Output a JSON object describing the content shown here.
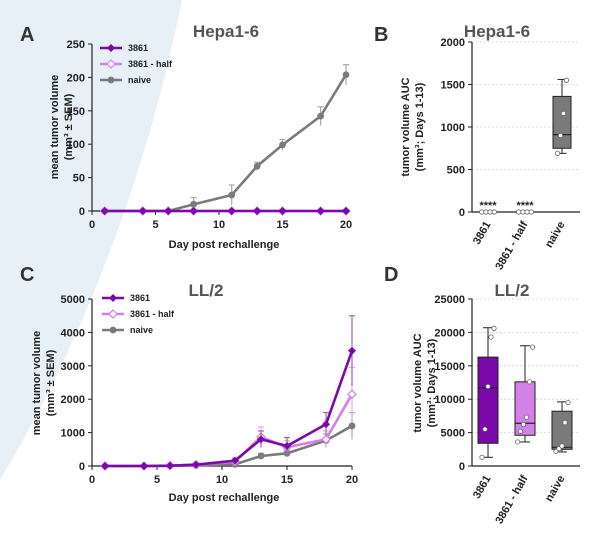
{
  "background": {
    "shape_color": "#e6f0f6"
  },
  "colors": {
    "3861": "#7b08a8",
    "3861 - half": "#d67fe8",
    "naive": "#7a7a7a"
  },
  "chart_data": [
    {
      "id": "A",
      "panel": "A",
      "type": "line",
      "title": "Hepa1-6",
      "xlabel": "Day post rechallenge",
      "ylabel_line1": "mean tumor volume",
      "ylabel_line2": "(mm³ ± SEM)",
      "xlim": [
        0,
        20
      ],
      "ylim": [
        0,
        250
      ],
      "xticks": [
        0,
        5,
        10,
        15,
        20
      ],
      "yticks": [
        0,
        50,
        100,
        150,
        200,
        250
      ],
      "x": [
        1,
        4,
        6,
        8,
        11,
        13,
        15,
        18,
        20
      ],
      "legend": [
        "3861",
        "3861 - half",
        "naive"
      ],
      "series": [
        {
          "name": "naive",
          "values": [
            0,
            0,
            0,
            10,
            24,
            67,
            99,
            142,
            204
          ],
          "errors": [
            0,
            0,
            0,
            10,
            15,
            6,
            8,
            14,
            15
          ]
        },
        {
          "name": "3861 - half",
          "values": [
            0,
            0,
            0,
            0,
            0,
            0,
            0,
            0,
            0
          ],
          "errors": [
            0,
            0,
            0,
            0,
            0,
            0,
            0,
            0,
            0
          ]
        },
        {
          "name": "3861",
          "values": [
            0,
            0,
            0,
            0,
            0,
            0,
            0,
            0,
            0
          ],
          "errors": [
            0,
            0,
            0,
            0,
            0,
            0,
            0,
            0,
            0
          ]
        }
      ]
    },
    {
      "id": "B",
      "panel": "B",
      "type": "box",
      "title": "Hepa1-6",
      "ylabel_line1": "tumor volume AUC",
      "ylabel_line2": "(mm³; Days 1-13)",
      "ylim": [
        0,
        2000
      ],
      "yticks": [
        0,
        500,
        1000,
        1500,
        2000
      ],
      "categories": [
        "3861",
        "3861 - half",
        "naive"
      ],
      "annotations": [
        "****",
        "****",
        ""
      ],
      "boxes": [
        {
          "name": "3861",
          "min": 0,
          "q1": 0,
          "median": 0,
          "q3": 0,
          "max": 0,
          "points": [
            0,
            0,
            0,
            0
          ]
        },
        {
          "name": "3861 - half",
          "min": 0,
          "q1": 0,
          "median": 0,
          "q3": 0,
          "max": 0,
          "points": [
            0,
            0,
            0,
            0
          ]
        },
        {
          "name": "naive",
          "min": 690,
          "q1": 750,
          "median": 910,
          "q3": 1360,
          "max": 1560,
          "points": [
            690,
            900,
            1160,
            1550
          ]
        }
      ]
    },
    {
      "id": "C",
      "panel": "C",
      "type": "line",
      "title": "LL/2",
      "xlabel": "Day post rechallenge",
      "ylabel_line1": "mean tumor volume",
      "ylabel_line2": "(mm³ ± SEM)",
      "xlim": [
        0,
        20
      ],
      "ylim": [
        0,
        5000
      ],
      "xticks": [
        0,
        5,
        10,
        15,
        20
      ],
      "yticks": [
        0,
        1000,
        2000,
        3000,
        4000,
        5000
      ],
      "x": [
        1,
        4,
        6,
        8,
        11,
        13,
        15,
        18,
        20
      ],
      "legend": [
        "3861",
        "3861 - half",
        "naive"
      ],
      "series": [
        {
          "name": "naive",
          "values": [
            0,
            0,
            5,
            20,
            50,
            300,
            380,
            760,
            1200
          ],
          "errors": [
            0,
            0,
            5,
            10,
            30,
            80,
            100,
            200,
            400
          ]
        },
        {
          "name": "3861 - half",
          "values": [
            0,
            0,
            10,
            40,
            130,
            870,
            560,
            800,
            2150
          ],
          "errors": [
            0,
            0,
            10,
            20,
            60,
            300,
            200,
            250,
            800
          ]
        },
        {
          "name": "3861",
          "values": [
            0,
            0,
            10,
            40,
            160,
            800,
            600,
            1250,
            3450
          ],
          "errors": [
            0,
            0,
            10,
            20,
            70,
            250,
            250,
            350,
            1050
          ]
        }
      ]
    },
    {
      "id": "D",
      "panel": "D",
      "type": "box",
      "title": "LL/2",
      "ylabel_line1": "tumor volume AUC",
      "ylabel_line2": "(mm³; Days 1-13)",
      "ylim": [
        0,
        25000
      ],
      "yticks": [
        0,
        5000,
        10000,
        15000,
        20000,
        25000
      ],
      "categories": [
        "3861",
        "3861 - half",
        "naive"
      ],
      "annotations": [
        "",
        "",
        ""
      ],
      "boxes": [
        {
          "name": "3861",
          "min": 1300,
          "q1": 3400,
          "median": 11700,
          "q3": 16300,
          "max": 20700,
          "points": [
            1300,
            5500,
            11900,
            19300,
            20600
          ]
        },
        {
          "name": "3861 - half",
          "min": 3600,
          "q1": 4600,
          "median": 6400,
          "q3": 12600,
          "max": 18000,
          "points": [
            3600,
            5200,
            6200,
            7300,
            12600,
            17800
          ]
        },
        {
          "name": "naive",
          "min": 2100,
          "q1": 2500,
          "median": 2800,
          "q3": 8200,
          "max": 9600,
          "points": [
            2200,
            2600,
            3000,
            6500,
            9500
          ]
        }
      ]
    }
  ]
}
